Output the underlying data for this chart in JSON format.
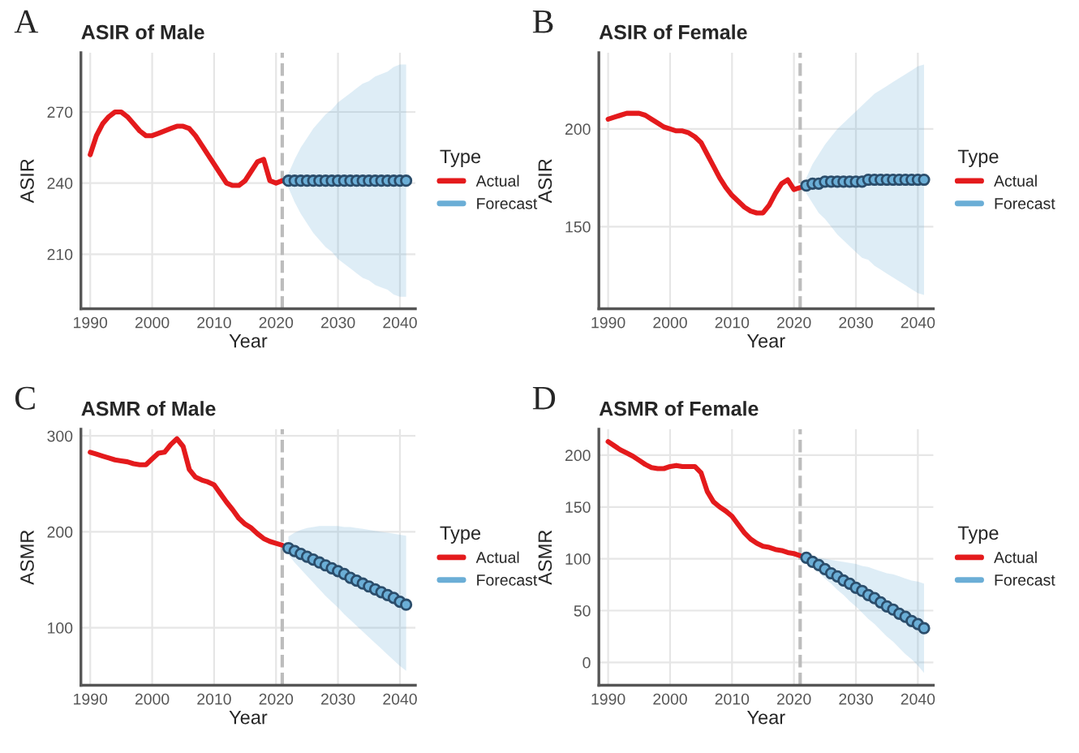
{
  "chart_data": [
    {
      "type": "line",
      "title": "ASIR of Male",
      "xlabel": "Year",
      "ylabel": "ASIR",
      "legend_title": "Type",
      "legend": "right",
      "grid": true,
      "annotations": [
        "A"
      ],
      "xlim": [
        1988.5,
        2042.5
      ],
      "xticks": [
        1990,
        2000,
        2010,
        2020,
        2030,
        2040
      ],
      "ylim": [
        187,
        295
      ],
      "yticks": [
        210,
        240,
        270
      ],
      "ref_lines": [
        {
          "axis": "x",
          "value": 2021,
          "color": "#bdbdbd",
          "line_style": "dashed"
        }
      ],
      "series": [
        {
          "name": "Actual",
          "color": "#e41a1c",
          "marker": "none",
          "x": [
            1990,
            1991,
            1992,
            1993,
            1994,
            1995,
            1996,
            1997,
            1998,
            1999,
            2000,
            2001,
            2002,
            2003,
            2004,
            2005,
            2006,
            2007,
            2008,
            2009,
            2010,
            2011,
            2012,
            2013,
            2014,
            2015,
            2016,
            2017,
            2018,
            2019,
            2020,
            2021
          ],
          "values": [
            252,
            260,
            265,
            268,
            270,
            270,
            268,
            265,
            262,
            260,
            260,
            261,
            262,
            263,
            264,
            264,
            263,
            260,
            256,
            252,
            248,
            244,
            240,
            239,
            239,
            241,
            245,
            249,
            250,
            241,
            240,
            241
          ]
        },
        {
          "name": "Forecast",
          "type": "scatter",
          "color": "#6baed6",
          "x": [
            2022,
            2023,
            2024,
            2025,
            2026,
            2027,
            2028,
            2029,
            2030,
            2031,
            2032,
            2033,
            2034,
            2035,
            2036,
            2037,
            2038,
            2039,
            2040,
            2041
          ],
          "values": [
            241,
            241,
            241,
            241,
            241,
            241,
            241,
            241,
            241,
            241,
            241,
            241,
            241,
            241,
            241,
            241,
            241,
            241,
            241,
            241
          ],
          "lower": [
            238,
            232,
            227,
            223,
            219,
            216,
            213,
            211,
            208,
            206,
            204,
            202,
            200,
            199,
            197,
            196,
            195,
            193,
            192,
            192
          ],
          "upper": [
            244,
            250,
            255,
            259,
            263,
            266,
            269,
            271,
            274,
            276,
            278,
            280,
            282,
            283,
            285,
            286,
            287,
            289,
            290,
            290
          ]
        }
      ]
    },
    {
      "type": "line",
      "title": "ASIR of Female",
      "xlabel": "Year",
      "ylabel": "ASIR",
      "legend_title": "Type",
      "legend": "right",
      "grid": true,
      "annotations": [
        "B"
      ],
      "xlim": [
        1988.5,
        2042.5
      ],
      "xticks": [
        1990,
        2000,
        2010,
        2020,
        2030,
        2040
      ],
      "ylim": [
        108,
        239
      ],
      "yticks": [
        150,
        200
      ],
      "ref_lines": [
        {
          "axis": "x",
          "value": 2021,
          "color": "#bdbdbd",
          "line_style": "dashed"
        }
      ],
      "series": [
        {
          "name": "Actual",
          "color": "#e41a1c",
          "marker": "none",
          "x": [
            1990,
            1991,
            1992,
            1993,
            1994,
            1995,
            1996,
            1997,
            1998,
            1999,
            2000,
            2001,
            2002,
            2003,
            2004,
            2005,
            2006,
            2007,
            2008,
            2009,
            2010,
            2011,
            2012,
            2013,
            2014,
            2015,
            2016,
            2017,
            2018,
            2019,
            2020,
            2021
          ],
          "values": [
            205,
            206,
            207,
            208,
            208,
            208,
            207,
            205,
            203,
            201,
            200,
            199,
            199,
            198,
            196,
            193,
            187,
            181,
            175,
            170,
            166,
            163,
            160,
            158,
            157,
            157,
            161,
            167,
            172,
            174,
            169,
            170
          ]
        },
        {
          "name": "Forecast",
          "type": "scatter",
          "color": "#6baed6",
          "x": [
            2022,
            2023,
            2024,
            2025,
            2026,
            2027,
            2028,
            2029,
            2030,
            2031,
            2032,
            2033,
            2034,
            2035,
            2036,
            2037,
            2038,
            2039,
            2040,
            2041
          ],
          "values": [
            171,
            172,
            172,
            173,
            173,
            173,
            173,
            173,
            173,
            173,
            174,
            174,
            174,
            174,
            174,
            174,
            174,
            174,
            174,
            174
          ],
          "lower": [
            167,
            162,
            157,
            154,
            150,
            146,
            143,
            140,
            137,
            134,
            133,
            130,
            128,
            126,
            124,
            122,
            120,
            118,
            116,
            115
          ],
          "upper": [
            175,
            182,
            187,
            192,
            196,
            200,
            203,
            206,
            209,
            212,
            215,
            218,
            220,
            222,
            224,
            226,
            228,
            230,
            232,
            233
          ]
        }
      ]
    },
    {
      "type": "line",
      "title": "ASMR of Male",
      "xlabel": "Year",
      "ylabel": "ASMR",
      "legend_title": "Type",
      "legend": "right",
      "grid": true,
      "annotations": [
        "C"
      ],
      "xlim": [
        1988.5,
        2042.5
      ],
      "xticks": [
        1990,
        2000,
        2010,
        2020,
        2030,
        2040
      ],
      "ylim": [
        40,
        307
      ],
      "yticks": [
        100,
        200,
        300
      ],
      "ref_lines": [
        {
          "axis": "x",
          "value": 2021,
          "color": "#bdbdbd",
          "line_style": "dashed"
        }
      ],
      "series": [
        {
          "name": "Actual",
          "color": "#e41a1c",
          "marker": "none",
          "x": [
            1990,
            1991,
            1992,
            1993,
            1994,
            1995,
            1996,
            1997,
            1998,
            1999,
            2000,
            2001,
            2002,
            2003,
            2004,
            2005,
            2006,
            2007,
            2008,
            2009,
            2010,
            2011,
            2012,
            2013,
            2014,
            2015,
            2016,
            2017,
            2018,
            2019,
            2020,
            2021
          ],
          "values": [
            283,
            281,
            279,
            277,
            275,
            274,
            273,
            271,
            270,
            270,
            276,
            282,
            283,
            291,
            297,
            289,
            265,
            257,
            254,
            252,
            249,
            240,
            231,
            223,
            214,
            208,
            204,
            198,
            193,
            190,
            188,
            186
          ]
        },
        {
          "name": "Forecast",
          "type": "scatter",
          "color": "#6baed6",
          "x": [
            2022,
            2023,
            2024,
            2025,
            2026,
            2027,
            2028,
            2029,
            2030,
            2031,
            2032,
            2033,
            2034,
            2035,
            2036,
            2037,
            2038,
            2039,
            2040,
            2041
          ],
          "values": [
            183,
            180,
            177,
            174,
            171,
            168,
            165,
            162,
            159,
            156,
            152,
            149,
            146,
            143,
            140,
            137,
            134,
            131,
            127,
            124
          ],
          "lower": [
            176,
            168,
            161,
            154,
            147,
            140,
            133,
            127,
            121,
            114,
            108,
            102,
            96,
            90,
            84,
            78,
            72,
            66,
            60,
            55
          ],
          "upper": [
            195,
            199,
            202,
            204,
            205,
            206,
            206,
            206,
            206,
            205,
            205,
            204,
            203,
            202,
            201,
            200,
            199,
            198,
            197,
            196
          ]
        }
      ]
    },
    {
      "type": "line",
      "title": "ASMR of Female",
      "xlabel": "Year",
      "ylabel": "ASMR",
      "legend_title": "Type",
      "legend": "right",
      "grid": true,
      "annotations": [
        "D"
      ],
      "xlim": [
        1988.5,
        2042.5
      ],
      "xticks": [
        1990,
        2000,
        2010,
        2020,
        2030,
        2040
      ],
      "ylim": [
        -22,
        225
      ],
      "yticks": [
        0,
        50,
        100,
        150,
        200
      ],
      "ref_lines": [
        {
          "axis": "x",
          "value": 2021,
          "color": "#bdbdbd",
          "line_style": "dashed"
        }
      ],
      "series": [
        {
          "name": "Actual",
          "color": "#e41a1c",
          "marker": "none",
          "x": [
            1990,
            1991,
            1992,
            1993,
            1994,
            1995,
            1996,
            1997,
            1998,
            1999,
            2000,
            2001,
            2002,
            2003,
            2004,
            2005,
            2006,
            2007,
            2008,
            2009,
            2010,
            2011,
            2012,
            2013,
            2014,
            2015,
            2016,
            2017,
            2018,
            2019,
            2020,
            2021
          ],
          "values": [
            213,
            209,
            205,
            202,
            199,
            195,
            191,
            188,
            187,
            187,
            189,
            190,
            189,
            189,
            189,
            183,
            165,
            155,
            150,
            146,
            141,
            133,
            125,
            119,
            115,
            112,
            111,
            109,
            108,
            106,
            105,
            103
          ]
        },
        {
          "name": "Forecast",
          "type": "scatter",
          "color": "#6baed6",
          "x": [
            2022,
            2023,
            2024,
            2025,
            2026,
            2027,
            2028,
            2029,
            2030,
            2031,
            2032,
            2033,
            2034,
            2035,
            2036,
            2037,
            2038,
            2039,
            2040,
            2041
          ],
          "values": [
            101,
            97,
            94,
            90,
            86,
            83,
            79,
            76,
            72,
            69,
            65,
            62,
            58,
            54,
            51,
            47,
            44,
            40,
            37,
            33
          ],
          "lower": [
            98,
            92,
            87,
            81,
            76,
            70,
            65,
            59,
            54,
            48,
            42,
            37,
            31,
            25,
            20,
            14,
            8,
            3,
            -3,
            -10
          ],
          "upper": [
            103,
            102,
            101,
            100,
            99,
            98,
            97,
            96,
            95,
            93,
            92,
            90,
            88,
            86,
            85,
            83,
            81,
            79,
            78,
            76
          ]
        }
      ]
    }
  ]
}
